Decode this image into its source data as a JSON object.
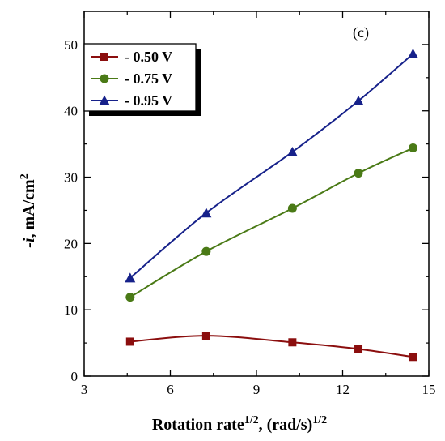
{
  "chart_data": {
    "type": "line",
    "panel_label": "(c)",
    "xlabel": {
      "main": "Rotation rate",
      "sup1": "1/2",
      "mid": ", (rad/s)",
      "sup2": "1/2"
    },
    "ylabel": {
      "main": "-i",
      "mid": ", mA/cm",
      "sup": "2"
    },
    "xlim": [
      3,
      15
    ],
    "ylim": [
      0,
      55
    ],
    "xticks": [
      3,
      6,
      9,
      12,
      15
    ],
    "yticks": [
      0,
      10,
      20,
      30,
      40,
      50
    ],
    "legend_position": "top-left",
    "grid": false,
    "series": [
      {
        "name": "- 0.50 V",
        "color": "#8b0e0e",
        "marker": "square",
        "x": [
          4.6,
          7.25,
          10.25,
          12.55,
          14.45
        ],
        "y": [
          5.2,
          6.1,
          5.1,
          4.1,
          2.9
        ]
      },
      {
        "name": "- 0.75 V",
        "color": "#4a7a16",
        "marker": "circle",
        "x": [
          4.6,
          7.25,
          10.25,
          12.55,
          14.45
        ],
        "y": [
          11.9,
          18.8,
          25.3,
          30.6,
          34.4
        ]
      },
      {
        "name": "- 0.95 V",
        "color": "#16218a",
        "marker": "triangle",
        "x": [
          4.6,
          7.25,
          10.25,
          12.55,
          14.45
        ],
        "y": [
          14.8,
          24.6,
          33.8,
          41.5,
          48.6
        ]
      }
    ]
  }
}
